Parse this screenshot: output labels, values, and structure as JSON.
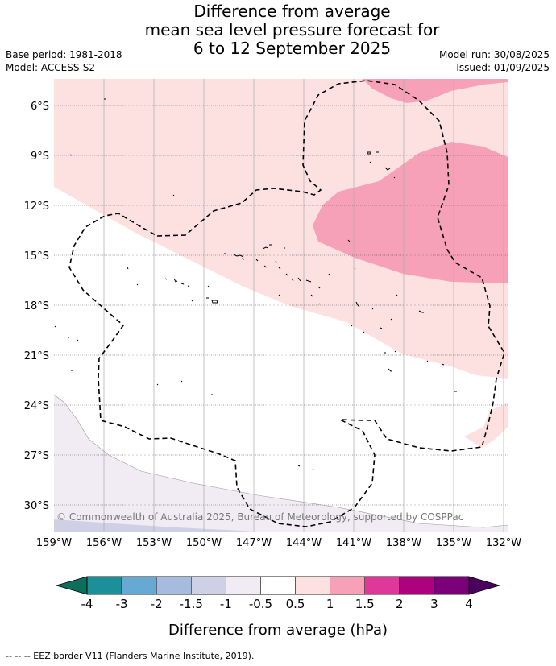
{
  "title": {
    "line1": "Difference from average",
    "line2": "mean sea level pressure forecast for",
    "line3": "6 to 12 September 2025"
  },
  "meta": {
    "base_period": "Base period: 1981-2018",
    "model": "Model: ACCESS-S2",
    "model_run": "Model run: 30/08/2025",
    "issued": "Issued: 01/09/2025"
  },
  "map": {
    "lat_labels": [
      "6°S",
      "9°S",
      "12°S",
      "15°S",
      "18°S",
      "21°S",
      "24°S",
      "27°S",
      "30°S"
    ],
    "lon_labels": [
      "159°W",
      "156°W",
      "153°W",
      "150°W",
      "147°W",
      "144°W",
      "141°W",
      "138°W",
      "135°W",
      "132°W"
    ],
    "copyright": "© Commonwealth of Australia 2025, Bureau of Meteorology, supported by COSPPac"
  },
  "colorbar": {
    "ticks": [
      "-4",
      "-3",
      "-2",
      "-1.5",
      "-1",
      "-0.5",
      "0.5",
      "1",
      "1.5",
      "2",
      "3",
      "4"
    ],
    "colors": [
      "#1b9098",
      "#66aad4",
      "#a7bbdf",
      "#cfd0e5",
      "#f1ecf4",
      "#ffffff",
      "#fde1e1",
      "#f7a1b9",
      "#e0389a",
      "#ae017e",
      "#7a0177"
    ],
    "under_color": "#0d6e5c",
    "over_color": "#4b0060",
    "label": "Difference from average (hPa)"
  },
  "footer": {
    "eez_legend": "--  --  -- EEZ border V11 (Flanders Marine Institute, 2019)."
  }
}
